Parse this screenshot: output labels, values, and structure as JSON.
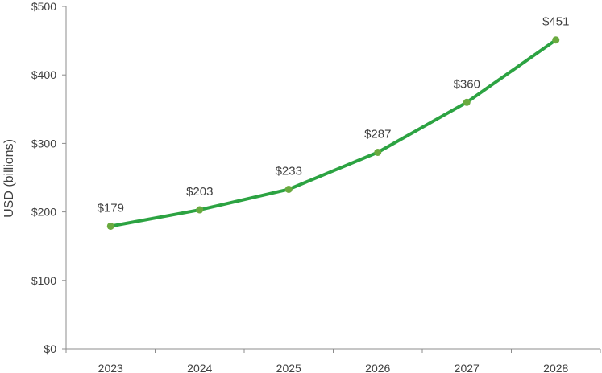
{
  "chart_data": {
    "type": "line",
    "x": [
      "2023",
      "2024",
      "2025",
      "2026",
      "2027",
      "2028"
    ],
    "series": [
      {
        "values": [
          179,
          203,
          233,
          287,
          360,
          451
        ],
        "data_labels": [
          "$179",
          "$203",
          "$233",
          "$287",
          "$360",
          "$451"
        ],
        "color": "#2ca342",
        "marker_color": "#6aaa3f"
      }
    ],
    "xlabel": "",
    "ylabel": "USD (billions)",
    "ylim": [
      0,
      500
    ],
    "y_ticks": [
      0,
      100,
      200,
      300,
      400,
      500
    ],
    "y_tick_labels": [
      "$0",
      "$100",
      "$200",
      "$300",
      "$400",
      "$500"
    ],
    "grid": false,
    "legend": false,
    "axis_color": "#8c8c8c"
  }
}
